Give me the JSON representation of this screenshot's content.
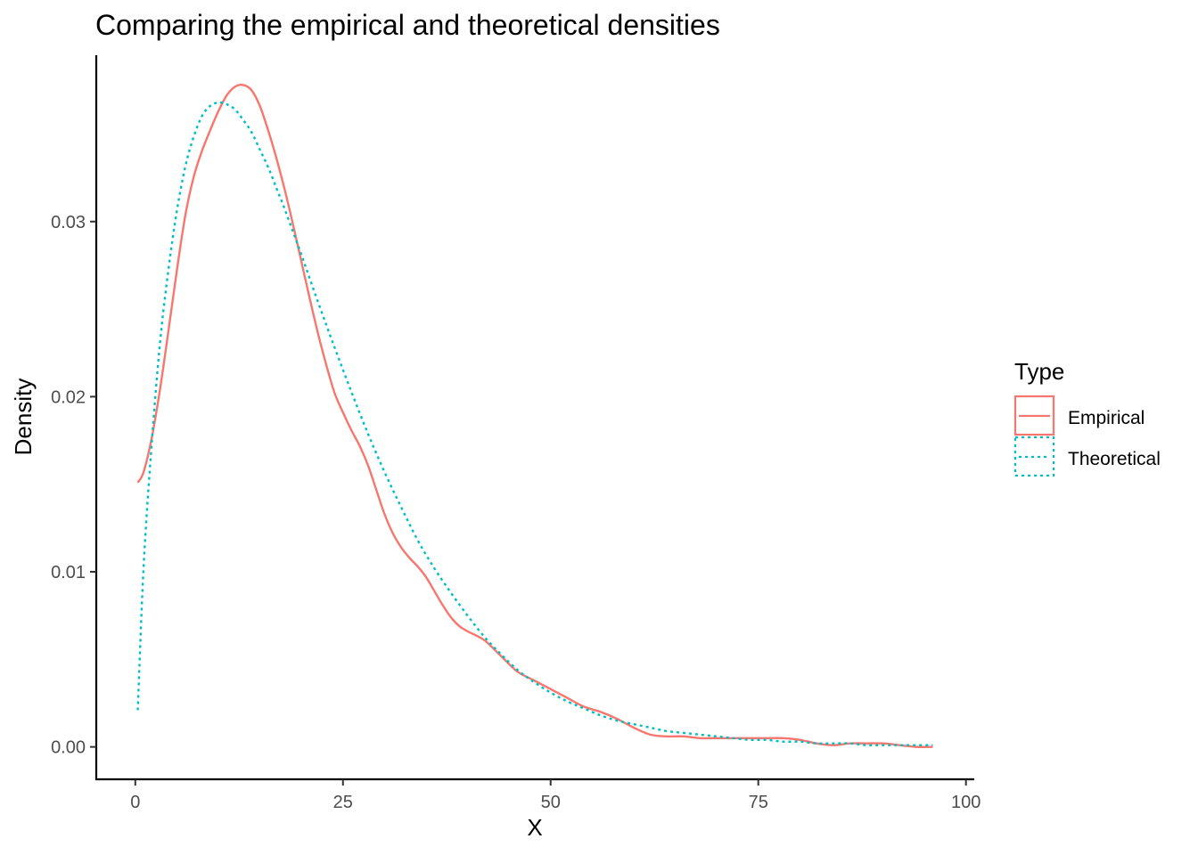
{
  "chart_data": {
    "type": "line",
    "title": "Comparing the empirical and theoretical densities",
    "xlabel": "X",
    "ylabel": "Density",
    "xlim": [
      -4.7,
      101
    ],
    "ylim": [
      -0.00185,
      0.0395
    ],
    "x_ticks": [
      0,
      25,
      50,
      75,
      100
    ],
    "x_tick_labels": [
      "0",
      "25",
      "50",
      "75",
      "100"
    ],
    "y_ticks": [
      0,
      0.01,
      0.02,
      0.03
    ],
    "y_tick_labels": [
      "0.00",
      "0.01",
      "0.02",
      "0.03"
    ],
    "grid": false,
    "legend": {
      "title": "Type",
      "position": "right"
    },
    "series": [
      {
        "name": "Empirical",
        "color": "#F8766D",
        "line_style": "solid",
        "x": [
          0.3,
          1,
          2,
          3,
          4,
          5,
          6,
          7,
          8,
          9,
          10,
          11,
          12,
          13,
          14,
          15,
          16,
          17,
          18,
          19,
          20,
          21,
          22,
          23,
          24,
          25,
          26,
          27,
          28,
          29,
          30,
          31,
          32,
          33,
          34,
          35,
          36,
          37,
          38,
          39,
          40,
          42,
          44,
          46,
          48,
          50,
          52,
          54,
          56,
          58,
          60,
          62,
          64,
          66,
          68,
          70,
          72,
          74,
          76,
          78,
          80,
          82,
          84,
          86,
          88,
          90,
          92,
          94,
          96
        ],
        "y": [
          0.0151,
          0.0157,
          0.0177,
          0.0205,
          0.0238,
          0.0272,
          0.0303,
          0.0325,
          0.034,
          0.0352,
          0.0363,
          0.0372,
          0.0377,
          0.0378,
          0.0375,
          0.0366,
          0.0352,
          0.0336,
          0.0318,
          0.0298,
          0.0277,
          0.0256,
          0.0236,
          0.0218,
          0.0202,
          0.0191,
          0.0181,
          0.0172,
          0.0161,
          0.0147,
          0.0133,
          0.0122,
          0.0114,
          0.0108,
          0.0103,
          0.0097,
          0.0089,
          0.0081,
          0.0074,
          0.0069,
          0.0066,
          0.0061,
          0.0052,
          0.0043,
          0.0038,
          0.0033,
          0.0028,
          0.0023,
          0.002,
          0.0016,
          0.0011,
          0.0007,
          0.0006,
          0.0006,
          0.0005,
          0.0005,
          0.0005,
          0.0005,
          0.0005,
          0.0005,
          0.0004,
          0.0002,
          0.0001,
          0.0002,
          0.0002,
          0.0002,
          0.0001,
          0.0,
          0.0
        ]
      },
      {
        "name": "Theoretical",
        "color": "#00BFC4",
        "line_style": "dotted",
        "x": [
          0.3,
          1,
          2,
          3,
          4,
          5,
          6,
          7,
          8,
          9,
          10,
          11,
          12,
          13,
          14,
          15,
          16,
          17,
          18,
          19,
          20,
          22,
          24,
          26,
          28,
          30,
          32,
          34,
          36,
          38,
          40,
          42,
          44,
          46,
          48,
          50,
          52,
          54,
          56,
          58,
          60,
          62,
          64,
          66,
          68,
          70,
          72,
          74,
          76,
          78,
          80,
          82,
          84,
          86,
          88,
          90,
          92,
          94,
          96
        ],
        "y": [
          0.0021,
          0.0103,
          0.0175,
          0.0232,
          0.0273,
          0.0306,
          0.0331,
          0.0348,
          0.036,
          0.0366,
          0.0368,
          0.0367,
          0.0364,
          0.0358,
          0.0351,
          0.0341,
          0.0331,
          0.0319,
          0.0307,
          0.0294,
          0.0281,
          0.0254,
          0.0228,
          0.0203,
          0.0179,
          0.0157,
          0.0137,
          0.0118,
          0.0102,
          0.0088,
          0.0075,
          0.0063,
          0.0053,
          0.0044,
          0.0037,
          0.0031,
          0.0026,
          0.0022,
          0.0018,
          0.0015,
          0.0013,
          0.0011,
          0.0009,
          0.0008,
          0.0007,
          0.0006,
          0.0005,
          0.0004,
          0.0004,
          0.0003,
          0.0003,
          0.0002,
          0.0002,
          0.0002,
          0.0001,
          0.0001,
          0.0001,
          0.0001,
          0.0001
        ]
      }
    ]
  }
}
